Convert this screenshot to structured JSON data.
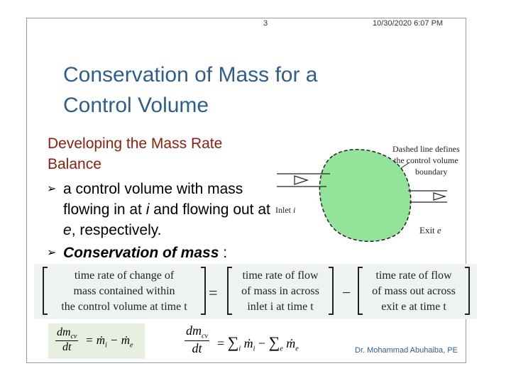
{
  "header": {
    "slide_number": "3",
    "datetime": "10/30/2020 6:07 PM"
  },
  "title_line1": "Conservation of Mass for a",
  "title_line2": "Control Volume",
  "subtitle_line1": "Developing the Mass Rate",
  "subtitle_line2": "Balance",
  "bullets": {
    "b1_pre": "a control volume with mass flowing in at ",
    "b1_i": "i",
    "b1_mid": " and flowing out at ",
    "b1_e": "e",
    "b1_post": ", respectively.",
    "b2_bold": "Conservation of mass",
    "b2_post": " :"
  },
  "diagram": {
    "boundary_note_1": "Dashed line defines",
    "boundary_note_2": "the control volume",
    "boundary_note_3": "boundary",
    "inlet_label": "Inlet",
    "inlet_var": "i",
    "exit_label": "Exit",
    "exit_var": "e",
    "fill_color": "#93e49a"
  },
  "word_equation": {
    "box1_l1": "time rate of change of",
    "box1_l2": "mass contained within",
    "box1_l3": "the control volume at time t",
    "op1": "=",
    "box2_l1": "time rate of flow",
    "box2_l2": "of mass in across",
    "box2_l3": "inlet i at time t",
    "op2": "−",
    "box3_l1": "time rate of flow",
    "box3_l2": "of mass out across",
    "box3_l3": "exit e at time t"
  },
  "eq_small": {
    "num": "dm",
    "num_sub": "cv",
    "den": "dt",
    "rhs": "= ṁ",
    "rhs_sub1": "i",
    "rhs_mid": " − ṁ",
    "rhs_sub2": "e"
  },
  "eq_large": {
    "num": "dm",
    "num_sub": "cv",
    "den": "dt",
    "eq": "=",
    "sum1": "∑",
    "sum1_sub": "i",
    "m1": "ṁ",
    "m1_sub": "i",
    "minus": "−",
    "sum2": "∑",
    "sum2_sub": "e",
    "m2": "ṁ",
    "m2_sub": "e"
  },
  "credit": "Dr. Mohammad Abuhaiba, PE"
}
